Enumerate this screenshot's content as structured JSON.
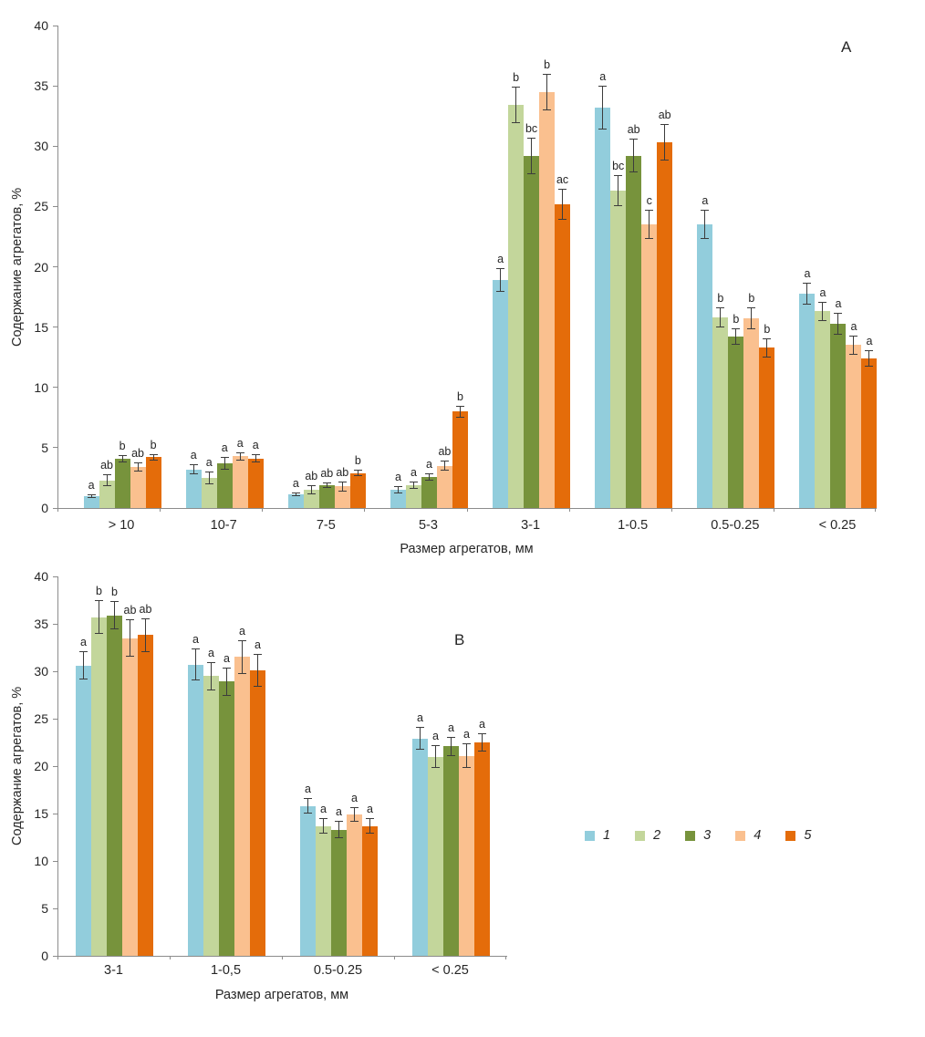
{
  "figure": {
    "background": "#ffffff"
  },
  "chart_data": [
    {
      "type": "bar",
      "panel_label": "A",
      "xlabel": "Размер агрегатов, мм",
      "ylabel": "Содержание агрегатов, %",
      "ylim": [
        0,
        40
      ],
      "ytick_step": 5,
      "grid": false,
      "error_bars": true,
      "legend_position": "external-right",
      "categories": [
        "> 10",
        "10-7",
        "7-5",
        "5-3",
        "3-1",
        "1-0.5",
        "0.5-0.25",
        "< 0.25"
      ],
      "series": [
        {
          "name": "1",
          "color": "#92CDDC",
          "values": [
            1.0,
            3.2,
            1.1,
            1.5,
            18.9,
            33.2,
            23.5,
            17.8
          ],
          "errors": [
            0.15,
            0.4,
            0.15,
            0.3,
            1.0,
            1.8,
            1.2,
            0.9
          ],
          "letters": [
            "a",
            "a",
            "a",
            "a",
            "a",
            "a",
            "a",
            "a"
          ]
        },
        {
          "name": "2",
          "color": "#C3D69B",
          "values": [
            2.3,
            2.5,
            1.5,
            1.9,
            33.4,
            26.3,
            15.8,
            16.3
          ],
          "errors": [
            0.5,
            0.5,
            0.4,
            0.3,
            1.5,
            1.3,
            0.8,
            0.8
          ],
          "letters": [
            "ab",
            "a",
            "ab",
            "a",
            "b",
            "bc",
            "b",
            "a"
          ]
        },
        {
          "name": "3",
          "color": "#77933C",
          "values": [
            4.1,
            3.7,
            1.9,
            2.6,
            29.2,
            29.2,
            14.2,
            15.3
          ],
          "errors": [
            0.3,
            0.5,
            0.25,
            0.3,
            1.5,
            1.4,
            0.7,
            0.9
          ],
          "letters": [
            "b",
            "a",
            "ab",
            "a",
            "bc",
            "ab",
            "b",
            "a"
          ]
        },
        {
          "name": "4",
          "color": "#FAC08F",
          "values": [
            3.4,
            4.3,
            1.8,
            3.5,
            34.5,
            23.5,
            15.7,
            13.5
          ],
          "errors": [
            0.35,
            0.35,
            0.4,
            0.4,
            1.5,
            1.2,
            0.9,
            0.8
          ],
          "letters": [
            "ab",
            "a",
            "ab",
            "ab",
            "b",
            "c",
            "b",
            "a"
          ]
        },
        {
          "name": "5",
          "color": "#E46C0A",
          "values": [
            4.2,
            4.1,
            2.9,
            8.0,
            25.2,
            30.3,
            13.3,
            12.4
          ],
          "errors": [
            0.3,
            0.35,
            0.25,
            0.5,
            1.3,
            1.5,
            0.8,
            0.7
          ],
          "letters": [
            "b",
            "a",
            "b",
            "b",
            "ac",
            "ab",
            "b",
            "a"
          ]
        }
      ]
    },
    {
      "type": "bar",
      "panel_label": "B",
      "xlabel": "Размер агрегатов, мм",
      "ylabel": "Содержание агрегатов, %",
      "ylim": [
        0,
        40
      ],
      "ytick_step": 5,
      "grid": false,
      "error_bars": true,
      "legend_position": "external-right",
      "categories": [
        "3-1",
        "1-0,5",
        "0.5-0.25",
        "< 0.25"
      ],
      "series": [
        {
          "name": "1",
          "color": "#92CDDC",
          "values": [
            30.6,
            30.7,
            15.8,
            22.9
          ],
          "errors": [
            1.5,
            1.7,
            0.8,
            1.2
          ],
          "letters": [
            "a",
            "a",
            "a",
            "a"
          ]
        },
        {
          "name": "2",
          "color": "#C3D69B",
          "values": [
            35.7,
            29.5,
            13.7,
            21.0
          ],
          "errors": [
            1.8,
            1.5,
            0.8,
            1.2
          ],
          "letters": [
            "b",
            "a",
            "a",
            "a"
          ]
        },
        {
          "name": "3",
          "color": "#77933C",
          "values": [
            35.9,
            28.9,
            13.3,
            22.1
          ],
          "errors": [
            1.5,
            1.5,
            0.9,
            1.0
          ],
          "letters": [
            "b",
            "a",
            "a",
            "a"
          ]
        },
        {
          "name": "4",
          "color": "#FAC08F",
          "values": [
            33.5,
            31.5,
            14.9,
            21.1
          ],
          "errors": [
            2.0,
            1.8,
            0.8,
            1.3
          ],
          "letters": [
            "ab",
            "a",
            "a",
            "a"
          ]
        },
        {
          "name": "5",
          "color": "#E46C0A",
          "values": [
            33.8,
            30.1,
            13.7,
            22.5
          ],
          "errors": [
            1.8,
            1.7,
            0.8,
            1.0
          ],
          "letters": [
            "ab",
            "a",
            "a",
            "a"
          ]
        }
      ]
    }
  ],
  "legend": {
    "items": [
      {
        "label": "1",
        "color": "#92CDDC"
      },
      {
        "label": "2",
        "color": "#C3D69B"
      },
      {
        "label": "3",
        "color": "#77933C"
      },
      {
        "label": "4",
        "color": "#FAC08F"
      },
      {
        "label": "5",
        "color": "#E46C0A"
      }
    ]
  }
}
